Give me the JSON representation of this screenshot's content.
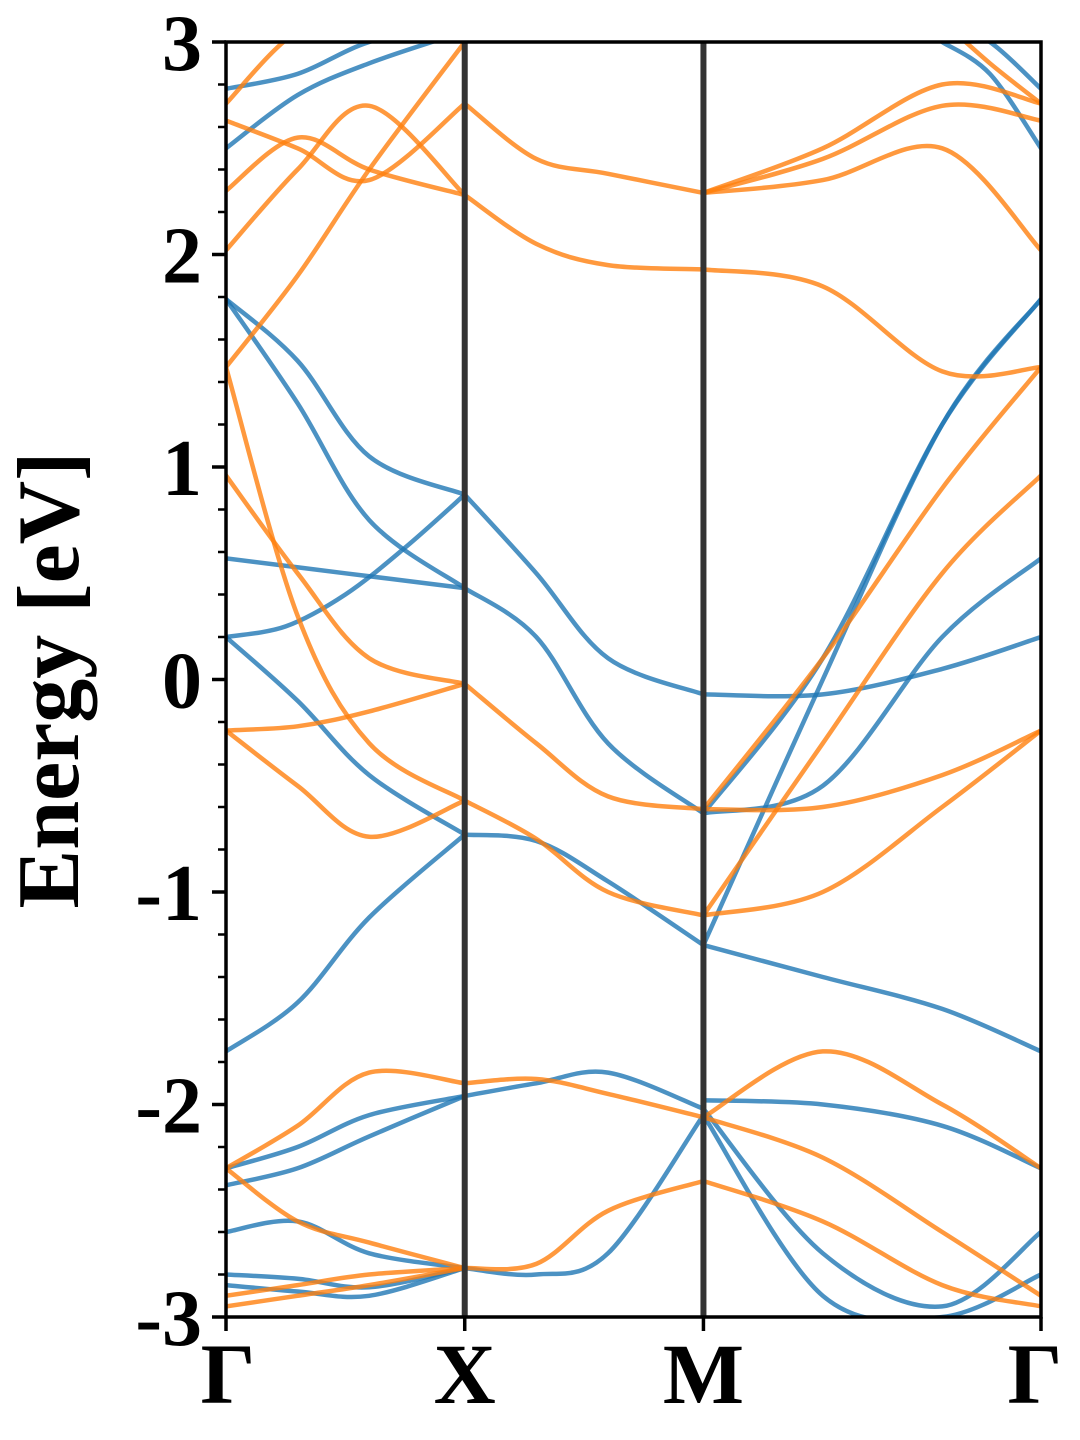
{
  "chart_data": {
    "type": "line",
    "ylabel": "Energy [eV]",
    "ylim": [
      -3,
      3
    ],
    "yticks": [
      "-3",
      "-2",
      "-1",
      "0",
      "1",
      "2",
      "3"
    ],
    "y_minor_step": 0.2,
    "grid": false,
    "legend": "none",
    "kpoints": [
      {
        "label": "Γ",
        "pos": 0.0
      },
      {
        "label": "X",
        "pos": 1.0
      },
      {
        "label": "M",
        "pos": 2.0
      },
      {
        "label": "Γ",
        "pos": 3.414
      }
    ],
    "colors": {
      "spin_up": "#1f77b4",
      "spin_down": "#ff7f0e",
      "kline": "#333333"
    },
    "series": [
      {
        "group": "spin_up",
        "x": [
          0,
          0.25,
          0.5,
          0.75,
          1
        ],
        "values": [
          0.2,
          0.25,
          0.4,
          0.62,
          0.87
        ]
      },
      {
        "group": "spin_up",
        "x": [
          0,
          0.5,
          1
        ],
        "values": [
          0.57,
          0.5,
          0.43
        ]
      },
      {
        "group": "spin_up",
        "x": [
          0,
          0.3,
          0.6,
          1
        ],
        "values": [
          0.2,
          -0.1,
          -0.45,
          -0.73
        ]
      },
      {
        "group": "spin_up",
        "x": [
          0,
          0.3,
          0.6,
          1
        ],
        "values": [
          -1.75,
          -1.52,
          -1.12,
          -0.73
        ]
      },
      {
        "group": "spin_up",
        "x": [
          0,
          0.3,
          0.6,
          1
        ],
        "values": [
          1.79,
          1.5,
          1.05,
          0.87
        ]
      },
      {
        "group": "spin_up",
        "x": [
          0,
          0.3,
          0.6,
          1
        ],
        "values": [
          1.79,
          1.3,
          0.75,
          0.43
        ]
      },
      {
        "group": "spin_up",
        "x": [
          0,
          0.3,
          0.6,
          1
        ],
        "values": [
          -2.3,
          -2.2,
          -2.05,
          -1.96
        ]
      },
      {
        "group": "spin_up",
        "x": [
          0,
          0.3,
          0.6,
          1
        ],
        "values": [
          -2.38,
          -2.3,
          -2.15,
          -1.96
        ]
      },
      {
        "group": "spin_up",
        "x": [
          0,
          0.3,
          0.6,
          1
        ],
        "values": [
          -2.6,
          -2.55,
          -2.7,
          -2.77
        ]
      },
      {
        "group": "spin_up",
        "x": [
          0,
          0.3,
          0.6,
          1
        ],
        "values": [
          -2.8,
          -2.82,
          -2.86,
          -2.77
        ]
      },
      {
        "group": "spin_up",
        "x": [
          0,
          0.3,
          0.6,
          1
        ],
        "values": [
          -2.85,
          -2.88,
          -2.9,
          -2.77
        ]
      },
      {
        "group": "spin_up",
        "x": [
          0,
          0.3,
          0.6,
          1
        ],
        "values": [
          2.5,
          2.75,
          2.9,
          3.05
        ]
      },
      {
        "group": "spin_up",
        "x": [
          0,
          0.3,
          0.6,
          1
        ],
        "values": [
          2.78,
          2.85,
          3.0,
          3.1
        ]
      },
      {
        "group": "spin_up",
        "x": [
          1,
          1.3,
          1.6,
          2
        ],
        "values": [
          0.87,
          0.5,
          0.1,
          -0.07
        ]
      },
      {
        "group": "spin_up",
        "x": [
          1,
          1.3,
          1.6,
          2
        ],
        "values": [
          0.43,
          0.2,
          -0.3,
          -0.63
        ]
      },
      {
        "group": "spin_up",
        "x": [
          1,
          1.3,
          1.6,
          2
        ],
        "values": [
          -0.73,
          -0.76,
          -0.95,
          -1.25
        ]
      },
      {
        "group": "spin_up",
        "x": [
          1,
          1.3,
          1.6,
          2
        ],
        "values": [
          -1.96,
          -1.9,
          -1.85,
          -2.02
        ]
      },
      {
        "group": "spin_up",
        "x": [
          1,
          1.3,
          1.6,
          2
        ],
        "values": [
          -2.77,
          -2.8,
          -2.7,
          -2.05
        ]
      },
      {
        "group": "spin_up",
        "x": [
          2,
          2.5,
          3,
          3.414
        ],
        "values": [
          -0.07,
          -0.07,
          0.05,
          0.2
        ]
      },
      {
        "group": "spin_up",
        "x": [
          2,
          2.5,
          3,
          3.414
        ],
        "values": [
          -0.63,
          -0.5,
          0.2,
          0.57
        ]
      },
      {
        "group": "spin_up",
        "x": [
          2,
          2.5,
          3,
          3.414
        ],
        "values": [
          -0.63,
          0.1,
          1.2,
          1.79
        ]
      },
      {
        "group": "spin_up",
        "x": [
          2,
          2.5,
          3,
          3.414
        ],
        "values": [
          -1.25,
          0.0,
          1.2,
          1.79
        ]
      },
      {
        "group": "spin_up",
        "x": [
          2,
          2.5,
          3,
          3.414
        ],
        "values": [
          -1.25,
          -1.4,
          -1.55,
          -1.75
        ]
      },
      {
        "group": "spin_up",
        "x": [
          2,
          2.5,
          3,
          3.414
        ],
        "values": [
          -1.98,
          -2.0,
          -2.1,
          -2.3
        ]
      },
      {
        "group": "spin_up",
        "x": [
          2,
          2.5,
          3,
          3.414
        ],
        "values": [
          -2.02,
          -2.7,
          -2.95,
          -2.6
        ]
      },
      {
        "group": "spin_up",
        "x": [
          2,
          2.5,
          3,
          3.414
        ],
        "values": [
          -2.05,
          -2.9,
          -3.0,
          -2.8
        ]
      },
      {
        "group": "spin_up",
        "x": [
          3,
          3.2,
          3.414
        ],
        "values": [
          3.0,
          2.85,
          2.5
        ]
      },
      {
        "group": "spin_up",
        "x": [
          3,
          3.2,
          3.414
        ],
        "values": [
          3.1,
          3.0,
          2.78
        ]
      },
      {
        "group": "spin_down",
        "x": [
          0,
          0.3,
          0.6,
          1
        ],
        "values": [
          -0.24,
          -0.22,
          -0.15,
          -0.02
        ]
      },
      {
        "group": "spin_down",
        "x": [
          0,
          0.3,
          0.6,
          1
        ],
        "values": [
          -0.24,
          -0.5,
          -0.74,
          -0.57
        ]
      },
      {
        "group": "spin_down",
        "x": [
          0,
          0.3,
          0.6,
          1
        ],
        "values": [
          0.96,
          0.5,
          0.1,
          -0.02
        ]
      },
      {
        "group": "spin_down",
        "x": [
          0,
          0.3,
          0.6,
          1
        ],
        "values": [
          1.47,
          0.3,
          -0.3,
          -0.57
        ]
      },
      {
        "group": "spin_down",
        "x": [
          0,
          0.3,
          0.6,
          1
        ],
        "values": [
          1.47,
          1.9,
          2.4,
          3.0
        ]
      },
      {
        "group": "spin_down",
        "x": [
          0,
          0.3,
          0.6,
          1
        ],
        "values": [
          2.02,
          2.4,
          2.7,
          2.28
        ]
      },
      {
        "group": "spin_down",
        "x": [
          0,
          0.3,
          0.6,
          1
        ],
        "values": [
          2.3,
          2.55,
          2.4,
          2.28
        ]
      },
      {
        "group": "spin_down",
        "x": [
          0,
          0.3,
          0.6,
          1
        ],
        "values": [
          2.63,
          2.5,
          2.35,
          2.71
        ]
      },
      {
        "group": "spin_down",
        "x": [
          0,
          0.3,
          0.6,
          1
        ],
        "values": [
          2.71,
          3.05,
          3.1,
          3.1
        ]
      },
      {
        "group": "spin_down",
        "x": [
          0,
          0.3,
          0.6,
          1
        ],
        "values": [
          -2.3,
          -2.1,
          -1.85,
          -1.9
        ]
      },
      {
        "group": "spin_down",
        "x": [
          0,
          0.3,
          0.6,
          1
        ],
        "values": [
          -2.3,
          -2.55,
          -2.65,
          -2.77
        ]
      },
      {
        "group": "spin_down",
        "x": [
          0,
          0.3,
          0.6,
          1
        ],
        "values": [
          -2.9,
          -2.85,
          -2.8,
          -2.77
        ]
      },
      {
        "group": "spin_down",
        "x": [
          0,
          0.3,
          0.6,
          1
        ],
        "values": [
          -2.95,
          -2.9,
          -2.85,
          -2.77
        ]
      },
      {
        "group": "spin_down",
        "x": [
          1,
          1.3,
          1.6,
          2
        ],
        "values": [
          2.71,
          2.45,
          2.38,
          2.29
        ]
      },
      {
        "group": "spin_down",
        "x": [
          1,
          1.3,
          1.6,
          2
        ],
        "values": [
          2.28,
          2.05,
          1.95,
          1.93
        ]
      },
      {
        "group": "spin_down",
        "x": [
          1,
          1.3,
          1.6,
          2
        ],
        "values": [
          -0.02,
          -0.3,
          -0.55,
          -0.61
        ]
      },
      {
        "group": "spin_down",
        "x": [
          1,
          1.3,
          1.6,
          2
        ],
        "values": [
          -0.57,
          -0.75,
          -1.0,
          -1.11
        ]
      },
      {
        "group": "spin_down",
        "x": [
          1,
          1.3,
          1.6,
          2
        ],
        "values": [
          -1.9,
          -1.88,
          -1.95,
          -2.06
        ]
      },
      {
        "group": "spin_down",
        "x": [
          1,
          1.3,
          1.6,
          2
        ],
        "values": [
          -2.77,
          -2.75,
          -2.5,
          -2.36
        ]
      },
      {
        "group": "spin_down",
        "x": [
          2,
          2.5,
          3,
          3.414
        ],
        "values": [
          2.29,
          2.45,
          2.7,
          2.63
        ]
      },
      {
        "group": "spin_down",
        "x": [
          2,
          2.5,
          3,
          3.414
        ],
        "values": [
          2.29,
          2.5,
          2.8,
          2.71
        ]
      },
      {
        "group": "spin_down",
        "x": [
          2,
          2.5,
          3,
          3.414
        ],
        "values": [
          2.29,
          2.35,
          2.5,
          2.02
        ]
      },
      {
        "group": "spin_down",
        "x": [
          2,
          2.5,
          3,
          3.414
        ],
        "values": [
          1.93,
          1.85,
          1.45,
          1.47
        ]
      },
      {
        "group": "spin_down",
        "x": [
          2,
          2.5,
          3,
          3.414
        ],
        "values": [
          -0.61,
          0.1,
          0.9,
          1.47
        ]
      },
      {
        "group": "spin_down",
        "x": [
          2,
          2.5,
          3,
          3.414
        ],
        "values": [
          -0.61,
          -0.6,
          -0.45,
          -0.24
        ]
      },
      {
        "group": "spin_down",
        "x": [
          2,
          2.5,
          3,
          3.414
        ],
        "values": [
          -1.11,
          -1.0,
          -0.6,
          -0.24
        ]
      },
      {
        "group": "spin_down",
        "x": [
          2,
          2.5,
          3,
          3.414
        ],
        "values": [
          -1.11,
          -0.3,
          0.5,
          0.96
        ]
      },
      {
        "group": "spin_down",
        "x": [
          2,
          2.5,
          3,
          3.414
        ],
        "values": [
          -2.06,
          -1.75,
          -2.0,
          -2.3
        ]
      },
      {
        "group": "spin_down",
        "x": [
          2,
          2.5,
          3,
          3.414
        ],
        "values": [
          -2.06,
          -2.25,
          -2.6,
          -2.9
        ]
      },
      {
        "group": "spin_down",
        "x": [
          2,
          2.5,
          3,
          3.414
        ],
        "values": [
          -2.36,
          -2.55,
          -2.85,
          -2.95
        ]
      },
      {
        "group": "spin_down",
        "x": [
          3,
          3.2,
          3.414
        ],
        "values": [
          3.1,
          2.9,
          2.71
        ]
      }
    ]
  }
}
